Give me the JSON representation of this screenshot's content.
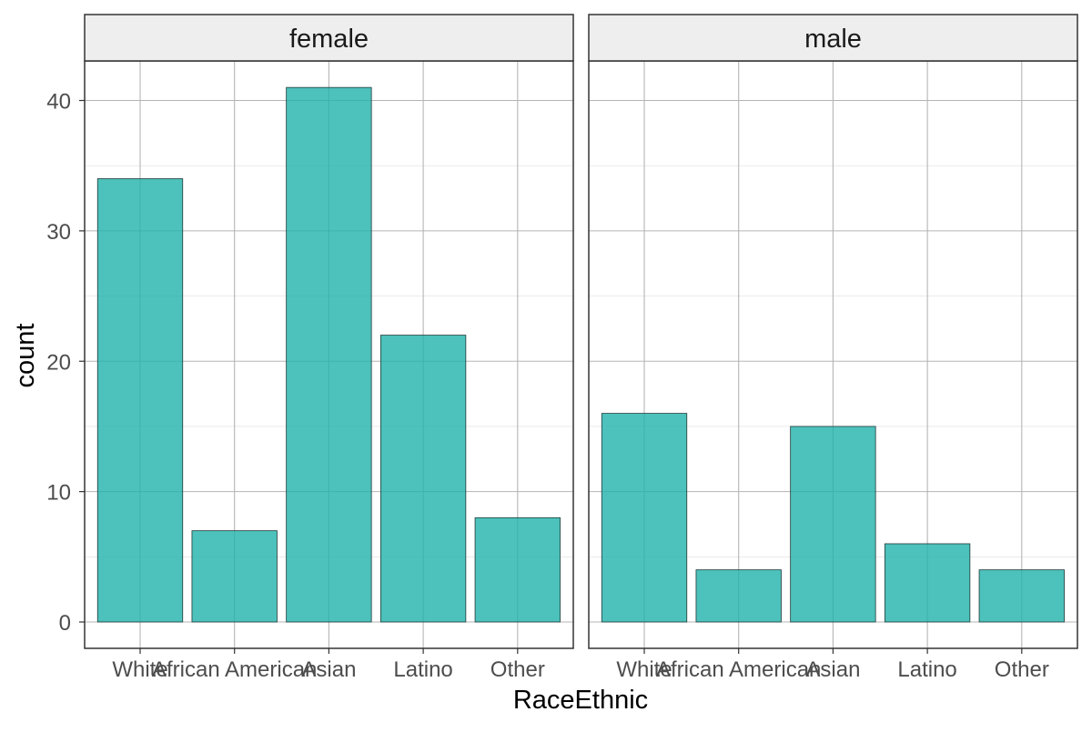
{
  "chart_data": {
    "type": "bar",
    "facet_by": "sex",
    "xlabel": "RaceEthnic",
    "ylabel": "count",
    "ylim": [
      0,
      43
    ],
    "yticks": [
      0,
      10,
      20,
      30,
      40
    ],
    "categories": [
      "White",
      "African American",
      "Asian",
      "Latino",
      "Other"
    ],
    "facets": [
      {
        "label": "female",
        "values": [
          34,
          7,
          41,
          22,
          8
        ]
      },
      {
        "label": "male",
        "values": [
          16,
          4,
          15,
          6,
          4
        ]
      }
    ],
    "grid": true,
    "legend": "none",
    "colors": {
      "bar_fill": "#20B2AA",
      "bar_opacity": 0.8,
      "bar_stroke": "#1f3a38",
      "grid": "#b5b5b5",
      "strip_bg": "#eeeeee",
      "panel_border": "#333333",
      "tick_text": "#4d4d4d",
      "title_text": "#000000"
    }
  }
}
